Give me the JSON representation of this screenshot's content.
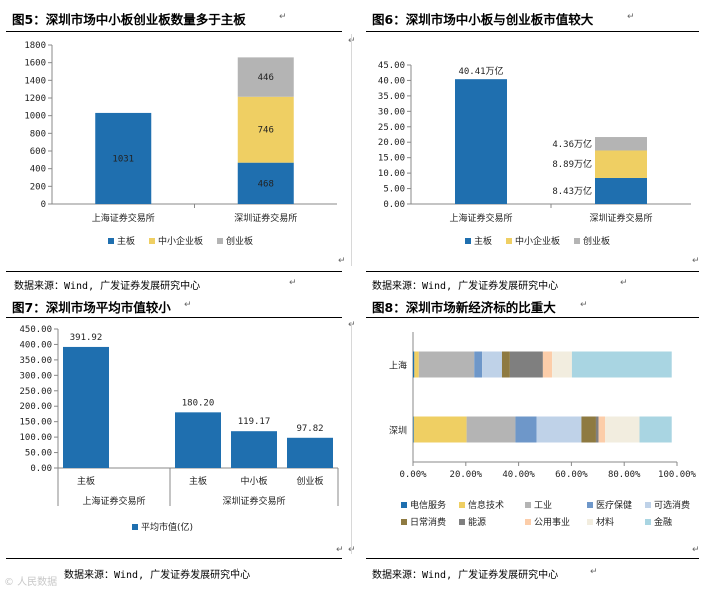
{
  "panels": {
    "p5": {
      "title": "图5：深圳市场中小板创业板数量多于主板"
    },
    "p6": {
      "title": "图6：深圳市场中小板与创业板市值较大"
    },
    "p7": {
      "title": "图7：深圳市场平均市值较小"
    },
    "p8": {
      "title": "图8：深圳市场新经济标的比重大"
    }
  },
  "sources": {
    "left_top": "数据来源：Wind, 广发证券发展研究中心",
    "right_top": "数据来源：Wind, 广发证券发展研究中心",
    "left_bottom": "数据来源：Wind, 广发证券发展研究中心",
    "right_bottom": "数据来源：Wind, 广发证券发展研究中心"
  },
  "paragraph_mark": "↵",
  "watermark": "© 人民数据",
  "colors": {
    "main_board": "#1F6FAF",
    "sme_board": "#EFCF63",
    "chinext": "#B4B4B4"
  },
  "chart_data": [
    {
      "id": "fig5",
      "type": "bar",
      "stacked": true,
      "categories": [
        "上海证券交易所",
        "深圳证券交易所"
      ],
      "series": [
        {
          "name": "主板",
          "values": [
            1031,
            468
          ],
          "color": "#1F6FAF"
        },
        {
          "name": "中小企业板",
          "values": [
            0,
            746
          ],
          "color": "#EFCF63"
        },
        {
          "name": "创业板",
          "values": [
            0,
            446
          ],
          "color": "#B4B4B4"
        }
      ],
      "data_labels": [
        [
          "1031",
          "",
          ""
        ],
        [
          "468",
          "746",
          "446"
        ]
      ],
      "yticks": [
        "0",
        "200",
        "400",
        "600",
        "800",
        "1000",
        "1200",
        "1400",
        "1600",
        "1800"
      ],
      "ylim": [
        0,
        1800
      ],
      "legend": [
        "主板",
        "中小企业板",
        "创业板"
      ]
    },
    {
      "id": "fig6",
      "type": "bar",
      "stacked": true,
      "categories": [
        "上海证券交易所",
        "深圳证券交易所"
      ],
      "series": [
        {
          "name": "主板",
          "values": [
            40.41,
            8.43
          ],
          "color": "#1F6FAF"
        },
        {
          "name": "中小企业板",
          "values": [
            0,
            8.89
          ],
          "color": "#EFCF63"
        },
        {
          "name": "创业板",
          "values": [
            0,
            4.36
          ],
          "color": "#B4B4B4"
        }
      ],
      "data_labels": [
        [
          "40.41万亿",
          "",
          ""
        ],
        [
          "8.43万亿",
          "8.89万亿",
          "4.36万亿"
        ]
      ],
      "yticks": [
        "0.00",
        "5.00",
        "10.00",
        "15.00",
        "20.00",
        "25.00",
        "30.00",
        "35.00",
        "40.00",
        "45.00"
      ],
      "ylim": [
        0,
        45
      ],
      "legend": [
        "主板",
        "中小企业板",
        "创业板"
      ]
    },
    {
      "id": "fig7",
      "type": "bar",
      "categories": [
        "主板",
        "",
        "主板",
        "中小板",
        "创业板"
      ],
      "groups": [
        "上海证券交易所",
        "深圳证券交易所"
      ],
      "values": [
        391.92,
        null,
        180.2,
        119.17,
        97.82
      ],
      "data_labels": [
        "391.92",
        "",
        "180.20",
        "119.17",
        "97.82"
      ],
      "color": "#1F6FAF",
      "yticks": [
        "0.00",
        "50.00",
        "100.00",
        "150.00",
        "200.00",
        "250.00",
        "300.00",
        "350.00",
        "400.00",
        "450.00"
      ],
      "ylim": [
        0,
        450
      ],
      "legend": [
        "平均市值(亿)"
      ]
    },
    {
      "id": "fig8",
      "type": "bar",
      "orientation": "horizontal",
      "stacked": true,
      "percent": true,
      "categories": [
        "上海",
        "深圳"
      ],
      "series": [
        {
          "name": "电信服务",
          "color": "#1F6FAF",
          "values": [
            0.5,
            0.3
          ]
        },
        {
          "name": "信息技术",
          "color": "#EFCF63",
          "values": [
            1.7,
            20.0
          ]
        },
        {
          "name": "工业",
          "color": "#B4B4B4",
          "values": [
            21.0,
            18.5
          ]
        },
        {
          "name": "医疗保健",
          "color": "#6E97C9",
          "values": [
            3.0,
            8.0
          ]
        },
        {
          "name": "可选消费",
          "color": "#BFD2E8",
          "values": [
            7.5,
            17.0
          ]
        },
        {
          "name": "日常消费",
          "color": "#8E7A41",
          "values": [
            3.0,
            5.5
          ]
        },
        {
          "name": "能源",
          "color": "#7F7F7F",
          "values": [
            12.5,
            1.0
          ]
        },
        {
          "name": "公用事业",
          "color": "#FCCDA9",
          "values": [
            3.5,
            2.5
          ]
        },
        {
          "name": "材料",
          "color": "#F2EDDF",
          "values": [
            7.5,
            13.0
          ]
        },
        {
          "name": "金融",
          "color": "#A9D5E2",
          "values": [
            37.8,
            12.2
          ]
        }
      ],
      "xticks": [
        "0.00%",
        "20.00%",
        "40.00%",
        "60.00%",
        "80.00%",
        "100.00%"
      ],
      "xlim": [
        0,
        100
      ]
    }
  ]
}
